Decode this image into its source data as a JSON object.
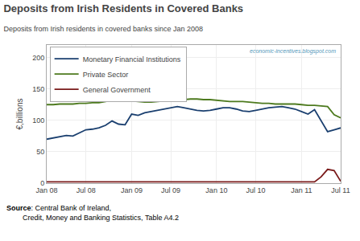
{
  "chart_data": {
    "type": "line",
    "title": "Deposits from Irish Residents in Covered Banks",
    "subtitle": "Deposits from Irish residents in covered banks since Jan 2008",
    "ylabel": "€,billions",
    "categories": [
      "Jan 08",
      null,
      null,
      null,
      null,
      null,
      "Jul 08",
      null,
      null,
      null,
      null,
      null,
      null,
      "Jan 09",
      null,
      null,
      null,
      null,
      null,
      "Jul 09",
      null,
      null,
      null,
      null,
      null,
      null,
      "Jan 10",
      null,
      null,
      null,
      null,
      null,
      "Jul 10",
      null,
      null,
      null,
      null,
      null,
      null,
      "Jan 11",
      null,
      null,
      null,
      null,
      null,
      "Jul 11"
    ],
    "series": [
      {
        "name": "Monetary Financial Institutions",
        "color": "#1a3f6f",
        "values": [
          70,
          72,
          74,
          76,
          75,
          80,
          85,
          86,
          88,
          92,
          99,
          94,
          93,
          110,
          108,
          112,
          114,
          116,
          118,
          120,
          122,
          120,
          118,
          116,
          115,
          116,
          118,
          120,
          120,
          118,
          115,
          114,
          116,
          118,
          120,
          121,
          122,
          120,
          118,
          114,
          110,
          117,
          100,
          82,
          85,
          88
        ]
      },
      {
        "name": "Private Sector",
        "color": "#4d7a1e",
        "values": [
          125,
          125,
          126,
          126,
          126,
          127,
          127,
          128,
          128,
          130,
          132,
          133,
          132,
          131,
          130,
          129,
          129,
          130,
          131,
          132,
          132,
          133,
          134,
          134,
          133,
          133,
          132,
          131,
          130,
          130,
          130,
          129,
          128,
          127,
          127,
          126,
          126,
          126,
          126,
          125,
          124,
          124,
          123,
          122,
          109,
          104
        ]
      },
      {
        "name": "General Government",
        "color": "#7a1a1a",
        "values": [
          2,
          2,
          2,
          2,
          2,
          2,
          2,
          2,
          2,
          2,
          2,
          2,
          2,
          2,
          2,
          2,
          2,
          2,
          2,
          2,
          2,
          2,
          2,
          2,
          2,
          2,
          2,
          2,
          2,
          2,
          2,
          2,
          2,
          2,
          2,
          2,
          2,
          2,
          2,
          2,
          2,
          2,
          10,
          22,
          20,
          3
        ]
      }
    ],
    "ylim": [
      0,
      220
    ],
    "yticks": [
      0,
      50,
      100,
      150,
      200
    ],
    "grid": true,
    "legend": "upper left",
    "annotations": [
      "economic-incentives.blogspot.com",
      "Source",
      ": Central Bank of Ireland,\n        Credit, Money and Banking Statistics, Table A4.2"
    ]
  }
}
